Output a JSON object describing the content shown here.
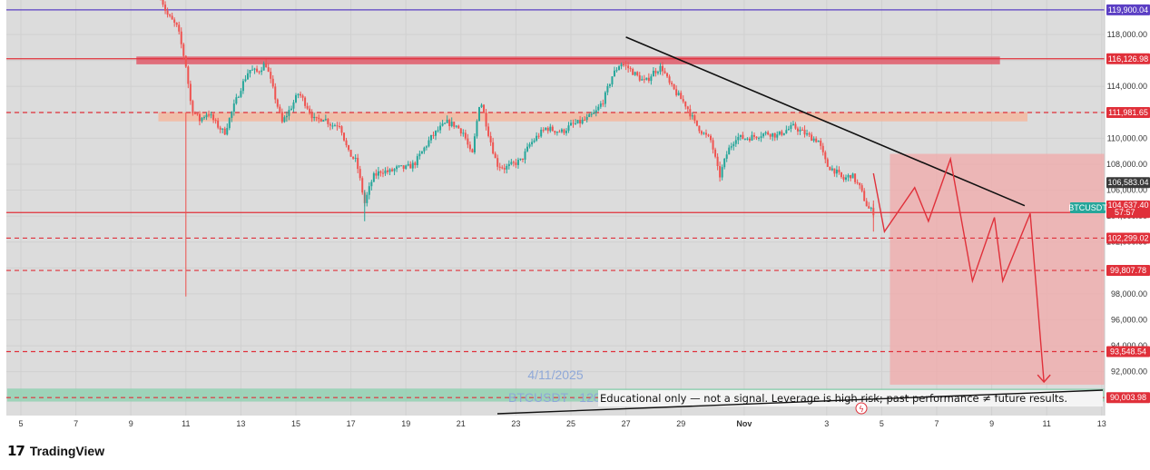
{
  "chart_data": {
    "type": "candlestick",
    "symbol": "BTCUSDT",
    "last_price": "104,637.40",
    "countdown": "57:57",
    "ylim": [
      89600,
      120800
    ],
    "y_ticks": [
      92000,
      94000,
      96000,
      98000,
      100000,
      102000,
      104000,
      106000,
      108000,
      110000,
      112000,
      114000,
      116000,
      118000
    ],
    "y_tick_labels": [
      "92,000.00",
      "94,000.00",
      "96,000.00",
      "98,000.00",
      "100,000.00",
      "102,000.00",
      "104,000.00",
      "106,000.00",
      "108,000.00",
      "110,000.00",
      "112,000.00",
      "114,000.00",
      "116,000.00",
      "118,000.00"
    ],
    "x_labels": [
      {
        "t": 0,
        "label": "5"
      },
      {
        "t": 2,
        "label": "7"
      },
      {
        "t": 4,
        "label": "9"
      },
      {
        "t": 6,
        "label": "11"
      },
      {
        "t": 8,
        "label": "13"
      },
      {
        "t": 10,
        "label": "15"
      },
      {
        "t": 12,
        "label": "17"
      },
      {
        "t": 14,
        "label": "19"
      },
      {
        "t": 16,
        "label": "21"
      },
      {
        "t": 18,
        "label": "23"
      },
      {
        "t": 20,
        "label": "25"
      },
      {
        "t": 22,
        "label": "27"
      },
      {
        "t": 24,
        "label": "29"
      },
      {
        "t": 26.3,
        "label": "Nov"
      },
      {
        "t": 29.3,
        "label": "3"
      },
      {
        "t": 31.3,
        "label": "5"
      },
      {
        "t": 33.3,
        "label": "7"
      },
      {
        "t": 35.3,
        "label": "9"
      },
      {
        "t": 37.3,
        "label": "11"
      },
      {
        "t": 39.3,
        "label": "13"
      }
    ],
    "price_path": [
      {
        "t": 5.0,
        "v": 121500
      },
      {
        "t": 5.3,
        "v": 119600
      },
      {
        "t": 5.7,
        "v": 118500
      },
      {
        "t": 6.0,
        "v": 115600
      },
      {
        "t": 6.2,
        "v": 112300
      },
      {
        "t": 6.5,
        "v": 111400
      },
      {
        "t": 6.8,
        "v": 112000
      },
      {
        "t": 7.1,
        "v": 111100
      },
      {
        "t": 7.4,
        "v": 110400
      },
      {
        "t": 7.7,
        "v": 112200
      },
      {
        "t": 8.0,
        "v": 113900
      },
      {
        "t": 8.3,
        "v": 115300
      },
      {
        "t": 8.6,
        "v": 115100
      },
      {
        "t": 8.9,
        "v": 115800
      },
      {
        "t": 9.2,
        "v": 113500
      },
      {
        "t": 9.5,
        "v": 111200
      },
      {
        "t": 9.8,
        "v": 112300
      },
      {
        "t": 10.1,
        "v": 113500
      },
      {
        "t": 10.4,
        "v": 112500
      },
      {
        "t": 10.7,
        "v": 111300
      },
      {
        "t": 11.0,
        "v": 111600
      },
      {
        "t": 11.3,
        "v": 111000
      },
      {
        "t": 11.6,
        "v": 111100
      },
      {
        "t": 11.9,
        "v": 108900
      },
      {
        "t": 12.2,
        "v": 108200
      },
      {
        "t": 12.5,
        "v": 105000
      },
      {
        "t": 12.8,
        "v": 107000
      },
      {
        "t": 13.1,
        "v": 107500
      },
      {
        "t": 13.4,
        "v": 107400
      },
      {
        "t": 13.7,
        "v": 107700
      },
      {
        "t": 14.0,
        "v": 107700
      },
      {
        "t": 14.3,
        "v": 108000
      },
      {
        "t": 14.6,
        "v": 109000
      },
      {
        "t": 14.9,
        "v": 110000
      },
      {
        "t": 15.2,
        "v": 110700
      },
      {
        "t": 15.5,
        "v": 111200
      },
      {
        "t": 15.8,
        "v": 111000
      },
      {
        "t": 16.1,
        "v": 110400
      },
      {
        "t": 16.4,
        "v": 108500
      },
      {
        "t": 16.7,
        "v": 113100
      },
      {
        "t": 17.0,
        "v": 110400
      },
      {
        "t": 17.3,
        "v": 108000
      },
      {
        "t": 17.6,
        "v": 107700
      },
      {
        "t": 17.9,
        "v": 108000
      },
      {
        "t": 18.2,
        "v": 108300
      },
      {
        "t": 18.5,
        "v": 109500
      },
      {
        "t": 18.8,
        "v": 110200
      },
      {
        "t": 19.1,
        "v": 110800
      },
      {
        "t": 19.4,
        "v": 110600
      },
      {
        "t": 19.7,
        "v": 110500
      },
      {
        "t": 20.0,
        "v": 111000
      },
      {
        "t": 20.3,
        "v": 111200
      },
      {
        "t": 20.6,
        "v": 111500
      },
      {
        "t": 20.9,
        "v": 112000
      },
      {
        "t": 21.2,
        "v": 113000
      },
      {
        "t": 21.5,
        "v": 114800
      },
      {
        "t": 21.8,
        "v": 115800
      },
      {
        "t": 22.1,
        "v": 115400
      },
      {
        "t": 22.4,
        "v": 114800
      },
      {
        "t": 22.7,
        "v": 114300
      },
      {
        "t": 23.0,
        "v": 115100
      },
      {
        "t": 23.3,
        "v": 115500
      },
      {
        "t": 23.6,
        "v": 114100
      },
      {
        "t": 23.9,
        "v": 113300
      },
      {
        "t": 24.2,
        "v": 112500
      },
      {
        "t": 24.5,
        "v": 111200
      },
      {
        "t": 24.8,
        "v": 110400
      },
      {
        "t": 25.1,
        "v": 109800
      },
      {
        "t": 25.4,
        "v": 107000
      },
      {
        "t": 25.7,
        "v": 109000
      },
      {
        "t": 26.0,
        "v": 110100
      },
      {
        "t": 26.3,
        "v": 110000
      },
      {
        "t": 26.6,
        "v": 110100
      },
      {
        "t": 26.9,
        "v": 110300
      },
      {
        "t": 27.2,
        "v": 110400
      },
      {
        "t": 27.5,
        "v": 110200
      },
      {
        "t": 27.8,
        "v": 110600
      },
      {
        "t": 28.1,
        "v": 110900
      },
      {
        "t": 28.4,
        "v": 110500
      },
      {
        "t": 28.7,
        "v": 110100
      },
      {
        "t": 29.0,
        "v": 109800
      },
      {
        "t": 29.3,
        "v": 107900
      },
      {
        "t": 29.6,
        "v": 107500
      },
      {
        "t": 29.9,
        "v": 106800
      },
      {
        "t": 30.2,
        "v": 107200
      },
      {
        "t": 30.5,
        "v": 106200
      },
      {
        "t": 30.8,
        "v": 104600
      },
      {
        "t": 31.0,
        "v": 104300
      }
    ],
    "horizontal_levels": [
      {
        "value": 119900.04,
        "label": "119,900.04",
        "style": "solid",
        "color": "#5b3fc4"
      },
      {
        "value": 116126.98,
        "label": "116,126.98",
        "style": "solid",
        "color": "#e0303a"
      },
      {
        "value": 111981.65,
        "label": "111,981.65",
        "style": "dashed",
        "color": "#e0303a"
      },
      {
        "value": 106583.04,
        "label": "106,583.04",
        "style": "none",
        "color": "#3a3a3a"
      },
      {
        "value": 104269.66,
        "label": "104,269.66",
        "style": "solid",
        "color": "#e0303a"
      },
      {
        "value": 102299.02,
        "label": "102,299.02",
        "style": "dashed",
        "color": "#e0303a"
      },
      {
        "value": 99807.78,
        "label": "99,807.78",
        "style": "dashed",
        "color": "#e0303a"
      },
      {
        "value": 93548.54,
        "label": "93,548.54",
        "style": "dashed",
        "color": "#e0303a"
      },
      {
        "value": 90003.98,
        "label": "90,003.98",
        "style": "dashed",
        "color": "#e0303a"
      }
    ],
    "zones": [
      {
        "kind": "supply",
        "t0": 4.2,
        "t1": 35.6,
        "v0": 115700,
        "v1": 116300,
        "color": "#e05a6a"
      },
      {
        "kind": "supply",
        "t0": 5.0,
        "t1": 36.6,
        "v0": 111300,
        "v1": 112000,
        "color": "#f3b9a0"
      },
      {
        "kind": "target",
        "t0": 31.6,
        "t1": 39.6,
        "v0": 91000,
        "v1": 108800,
        "color": "#f1a9a9"
      },
      {
        "kind": "demand",
        "t0": -0.5,
        "t1": 39.6,
        "v0": 89700,
        "v1": 90700,
        "color": "#8fd1b0"
      }
    ],
    "trendline": {
      "t0": 22.0,
      "v0": 117800,
      "t1": 36.5,
      "v1": 104800
    },
    "projection": [
      {
        "t": 31.0,
        "v": 107300
      },
      {
        "t": 31.4,
        "v": 102800
      },
      {
        "t": 32.5,
        "v": 106200
      },
      {
        "t": 33.0,
        "v": 103600
      },
      {
        "t": 33.8,
        "v": 108400
      },
      {
        "t": 34.6,
        "v": 99000
      },
      {
        "t": 35.4,
        "v": 103900
      },
      {
        "t": 35.7,
        "v": 99000
      },
      {
        "t": 36.7,
        "v": 104200
      },
      {
        "t": 37.2,
        "v": 91200
      }
    ],
    "date_watermark": "4/11/2025",
    "symbol_watermark": "BTCUSDT · 120",
    "disclaimer": "Educational only — not a signal. Leverage is high risk; past performance ≠ future results."
  },
  "brand": {
    "logo_mark": "17",
    "name": "TradingView"
  }
}
